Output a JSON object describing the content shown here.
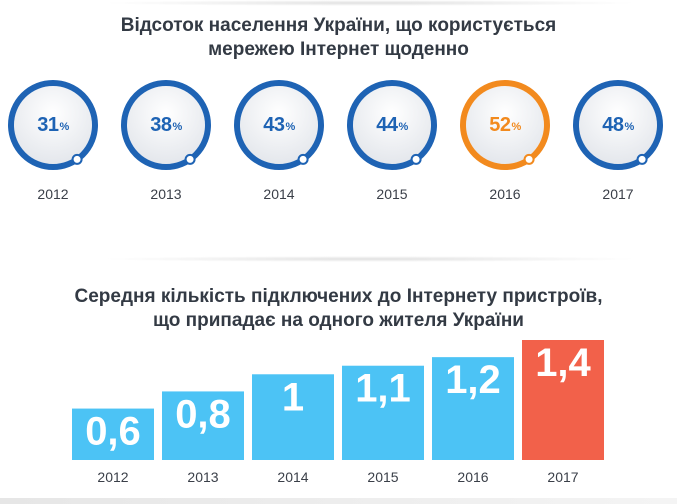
{
  "colors": {
    "blue": "#1e63b4",
    "orange": "#f28a1e",
    "bar_blue": "#4cc3f5",
    "bar_highlight": "#f2614a",
    "year_text": "#3a3f48",
    "title_text": "#333a44"
  },
  "chart_data": [
    {
      "type": "donut",
      "title": [
        "Відсоток населення України, що користується",
        "мережею Інтернет щоденно"
      ],
      "categories": [
        "2012",
        "2013",
        "2014",
        "2015",
        "2016",
        "2017"
      ],
      "values": [
        31,
        38,
        43,
        44,
        52,
        48
      ],
      "value_labels": [
        "31",
        "38",
        "43",
        "44",
        "52",
        "48"
      ],
      "unit": "%",
      "highlight_index": 4
    },
    {
      "type": "bar",
      "title": [
        "Середня кількість підключених до Інтернету пристроїв,",
        "що припадає на одного жителя України"
      ],
      "categories": [
        "2012",
        "2013",
        "2014",
        "2015",
        "2016",
        "2017"
      ],
      "values": [
        0.6,
        0.8,
        1.0,
        1.1,
        1.2,
        1.4
      ],
      "value_labels": [
        "0,6",
        "0,8",
        "1",
        "1,1",
        "1,2",
        "1,4"
      ],
      "ylim": [
        0,
        1.4
      ],
      "highlight_index": 5
    }
  ]
}
